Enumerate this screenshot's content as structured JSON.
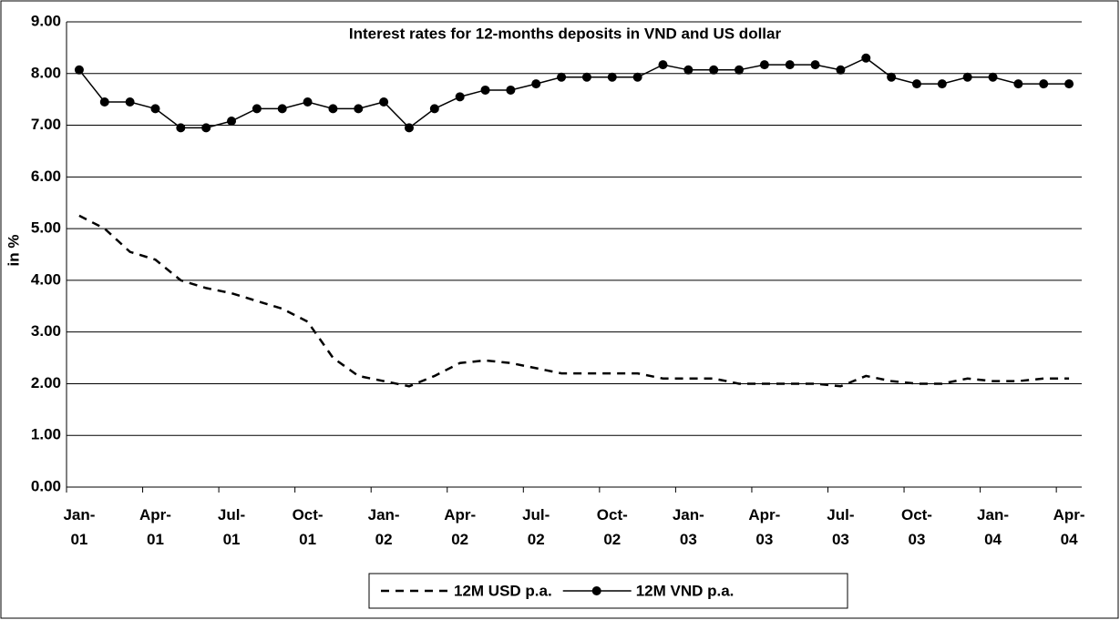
{
  "chart_data": {
    "type": "line",
    "title": "Interest rates for 12-months deposits in VND and US dollar",
    "y_label": "in %",
    "categories": [
      "Jan-01",
      null,
      null,
      "Apr-01",
      null,
      null,
      "Jul-01",
      null,
      null,
      "Oct-01",
      null,
      null,
      "Jan-02",
      null,
      null,
      "Apr-02",
      null,
      null,
      "Jul-02",
      null,
      null,
      "Oct-02",
      null,
      null,
      "Jan-03",
      null,
      null,
      "Apr-03",
      null,
      null,
      "Jul-03",
      null,
      null,
      "Oct-03",
      null,
      null,
      "Jan-04",
      null,
      null,
      "Apr-04"
    ],
    "series": [
      {
        "name": "12M USD p.a.",
        "color": "#000000",
        "dash": true,
        "marker": false,
        "values": [
          5.25,
          5.0,
          4.55,
          4.4,
          4.0,
          3.85,
          3.75,
          3.6,
          3.45,
          3.2,
          2.5,
          2.15,
          2.05,
          1.95,
          2.15,
          2.4,
          2.45,
          2.4,
          2.3,
          2.2,
          2.2,
          2.2,
          2.2,
          2.1,
          2.1,
          2.1,
          2.0,
          2.0,
          2.0,
          2.0,
          1.95,
          2.15,
          2.05,
          2.0,
          2.0,
          2.1,
          2.05,
          2.05,
          2.1,
          2.1
        ]
      },
      {
        "name": "12M VND p.a.",
        "color": "#000000",
        "dash": false,
        "marker": true,
        "values": [
          8.07,
          7.45,
          7.45,
          7.32,
          6.95,
          6.95,
          7.08,
          7.32,
          7.32,
          7.45,
          7.32,
          7.32,
          7.45,
          6.95,
          7.32,
          7.55,
          7.68,
          7.68,
          7.8,
          7.93,
          7.93,
          7.93,
          7.93,
          8.17,
          8.07,
          8.07,
          8.07,
          8.17,
          8.17,
          8.17,
          8.07,
          8.3,
          7.93,
          7.8,
          7.8,
          7.93,
          7.93,
          7.8,
          7.8,
          7.8
        ]
      }
    ],
    "ylim": [
      0,
      9
    ],
    "yticks": [
      {
        "value": 0,
        "label": "0.00"
      },
      {
        "value": 1,
        "label": "1.00"
      },
      {
        "value": 2,
        "label": "2.00"
      },
      {
        "value": 3,
        "label": "3.00"
      },
      {
        "value": 4,
        "label": "4.00"
      },
      {
        "value": 5,
        "label": "5.00"
      },
      {
        "value": 6,
        "label": "6.00"
      },
      {
        "value": 7,
        "label": "7.00"
      },
      {
        "value": 8,
        "label": "8.00"
      },
      {
        "value": 9,
        "label": "9.00"
      }
    ],
    "grid": true,
    "legend": "bottom"
  }
}
